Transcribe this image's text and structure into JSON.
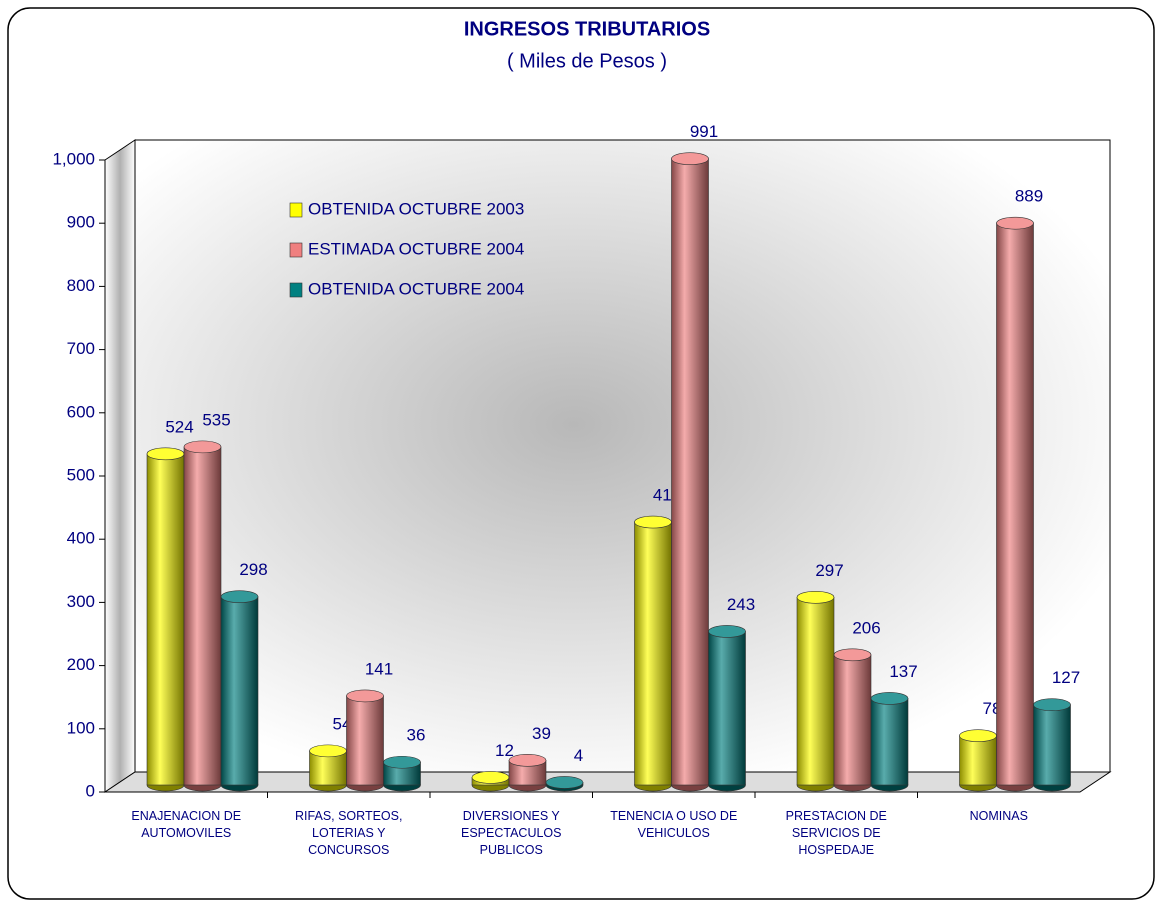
{
  "chart_data": {
    "type": "bar",
    "title": "INGRESOS  TRIBUTARIOS",
    "subtitle": "( Miles de Pesos )",
    "categories": [
      "ENAJENACION DE AUTOMOVILES",
      "RIFAS, SORTEOS, LOTERIAS Y CONCURSOS",
      "DIVERSIONES Y ESPECTACULOS PUBLICOS",
      "TENENCIA O USO DE VEHICULOS",
      "PRESTACION DE SERVICIOS DE HOSPEDAJE",
      "NOMINAS"
    ],
    "series": [
      {
        "name": "OBTENIDA  OCTUBRE  2003",
        "color": "#ffff00",
        "values": [
          524,
          54,
          12,
          416,
          297,
          78
        ]
      },
      {
        "name": "ESTIMADA  OCTUBRE 2004",
        "color": "#f08080",
        "values": [
          535,
          141,
          39,
          991,
          206,
          889
        ]
      },
      {
        "name": "OBTENIDA  OCTUBRE  2004",
        "color": "#008080",
        "values": [
          298,
          36,
          4,
          243,
          137,
          127
        ]
      }
    ],
    "ylim": [
      0,
      1000
    ],
    "yticks": [
      0,
      100,
      200,
      300,
      400,
      500,
      600,
      700,
      800,
      900,
      {
        "value": 1000,
        "label": "1,000"
      }
    ],
    "legend": "upper left"
  }
}
